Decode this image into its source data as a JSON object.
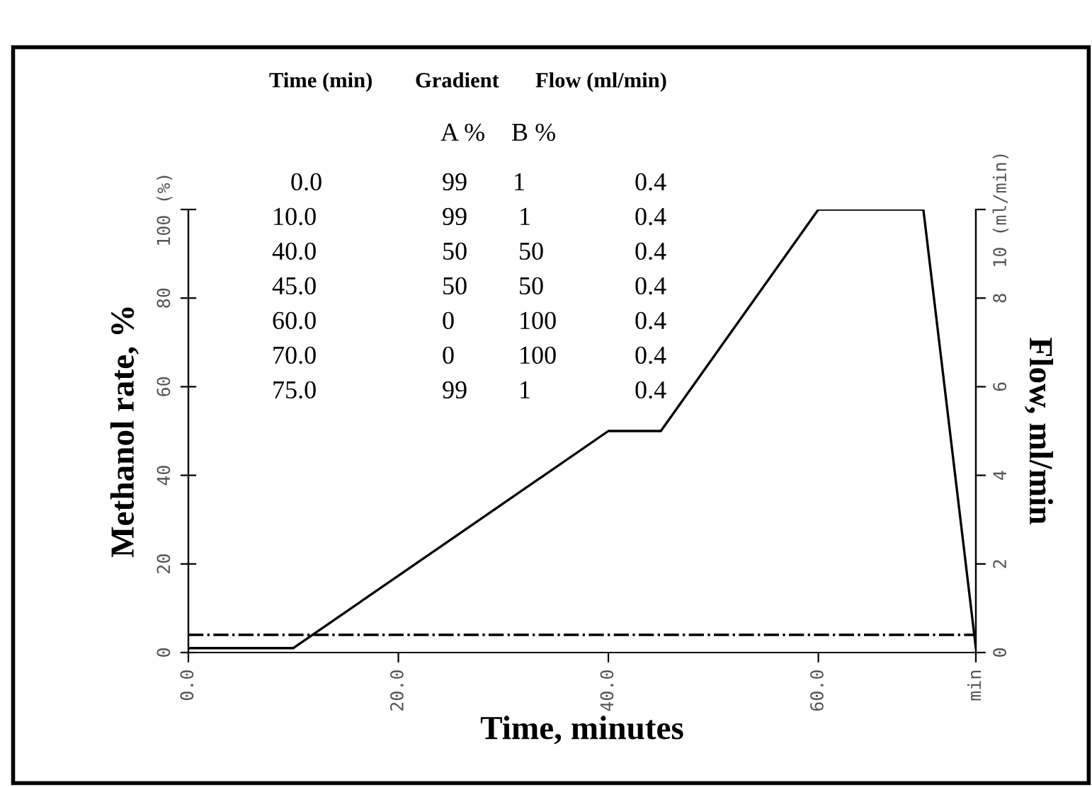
{
  "chart_data": {
    "type": "line",
    "xlabel": "Time, minutes",
    "ylabel": "Methanol rate, %",
    "y2label": "Flow, ml/min",
    "xlim": [
      0,
      75
    ],
    "xticks": [
      {
        "value": 0,
        "label": "0.0"
      },
      {
        "value": 20,
        "label": "20.0"
      },
      {
        "value": 40,
        "label": "40.0"
      },
      {
        "value": 60,
        "label": "60.0"
      },
      {
        "value": 75,
        "label": "min"
      }
    ],
    "ylim": [
      0,
      100
    ],
    "yticks": [
      0,
      20,
      40,
      60,
      80,
      {
        "value": 100,
        "label": "100 (%)"
      }
    ],
    "y2lim": [
      0,
      10
    ],
    "y2ticks": [
      0,
      2,
      4,
      6,
      8,
      {
        "value": 10,
        "label": "10 (ml/min)"
      }
    ],
    "grid": false,
    "legend": false,
    "marker": "none",
    "series": [
      {
        "color": "#000000",
        "line_style": "solid",
        "x": [
          0,
          10,
          40,
          45,
          60,
          70,
          75
        ],
        "values": [
          1,
          1,
          50,
          50,
          100,
          100,
          1
        ]
      },
      {
        "color": "#000000",
        "line_style": "dashdot",
        "axis": "y2",
        "x": [
          0,
          75
        ],
        "values": [
          0.4,
          0.4
        ]
      }
    ],
    "annotations": [
      "Time (min)",
      "Gradient",
      "Flow (ml/min)",
      "A %",
      "B %",
      "0.0",
      "99",
      "1",
      "0.4",
      "10.0",
      "99",
      "1",
      "0.4",
      "40.0",
      "50",
      "50",
      "0.4",
      "45.0",
      "50",
      "50",
      "0.4",
      "60.0",
      "0",
      "100",
      "0.4",
      "70.0",
      "0",
      "100",
      "0.4",
      "75.0",
      "99",
      "1",
      "0.4"
    ]
  }
}
